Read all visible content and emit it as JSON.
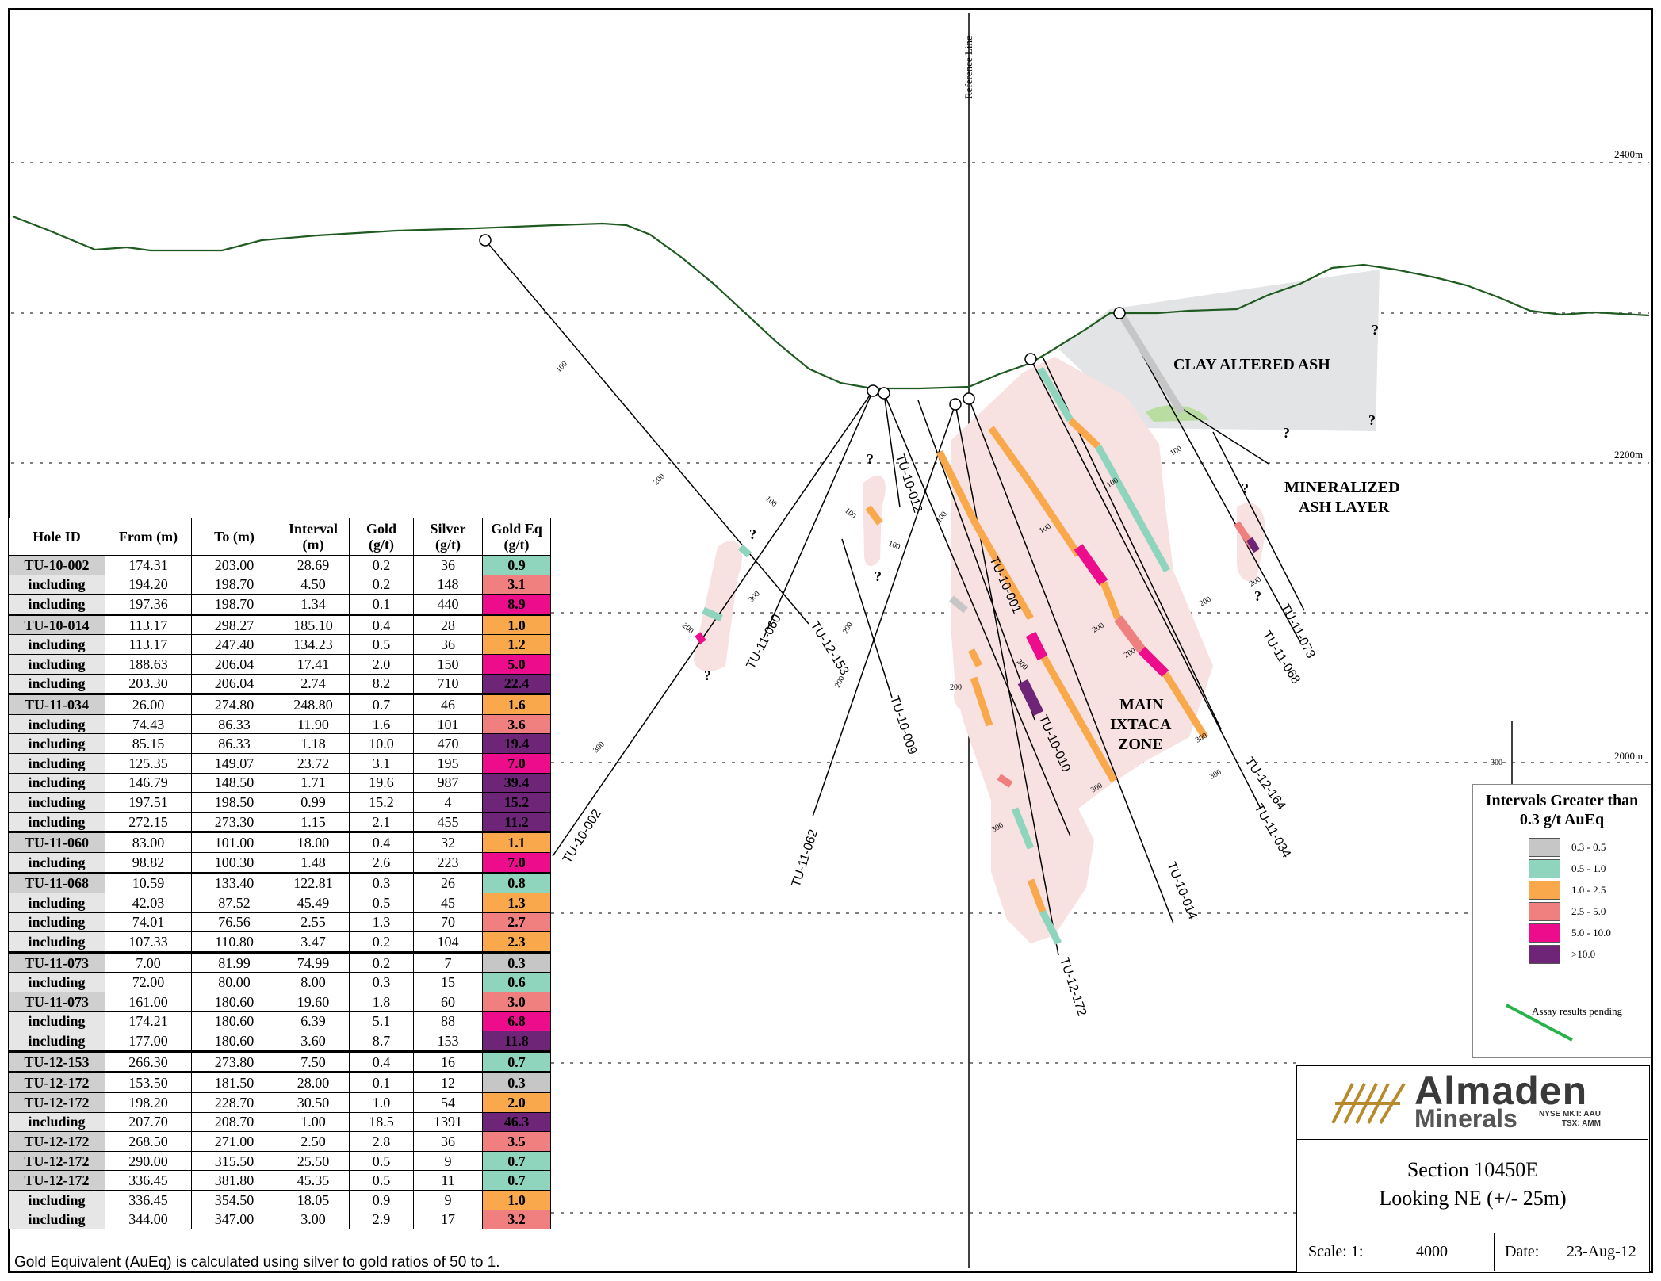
{
  "elevations": {
    "e2400": "2400m",
    "e2200": "2200m",
    "e2000": "2000m"
  },
  "reference_line": "Reference Line",
  "zones": {
    "clay": "CLAY ALTERED ASH",
    "ash_line1": "MINERALIZED",
    "ash_line2": "ASH LAYER",
    "main1": "MAIN",
    "main2": "IXTACA",
    "main3": "ZONE"
  },
  "holes": {
    "h1": "TU-10-002",
    "h2": "TU-11-060",
    "h3": "TU-12-153",
    "h4": "TU-10-009",
    "h5": "TU-10-012",
    "h6": "TU-11-062",
    "h7": "TU-10-001",
    "h8": "TU-10-010",
    "h9": "TU-10-014",
    "h10": "TU-11-034",
    "h11": "TU-12-164",
    "h12": "TU-11-068",
    "h13": "TU-11-073",
    "h14": "TU-12-172"
  },
  "depth_ticks": {
    "d100": "100",
    "d200": "200",
    "d300": "300",
    "q": "?"
  },
  "table": {
    "headers": {
      "hole_id": "Hole ID",
      "from": "From (m)",
      "to": "To (m)",
      "interval1": "Interval",
      "interval2": "(m)",
      "gold1": "Gold",
      "gold2": "(g/t)",
      "silver1": "Silver",
      "silver2": "(g/t)",
      "goldeq1": "Gold Eq",
      "goldeq2": "(g/t)"
    },
    "rows": [
      {
        "id": "TU-10-002",
        "from": "174.31",
        "to": "203.00",
        "interval": "28.69",
        "gold": "0.2",
        "silver": "36",
        "aueq": "0.9",
        "color": "#8fd5be",
        "group": true
      },
      {
        "id": "including",
        "from": "194.20",
        "to": "198.70",
        "interval": "4.50",
        "gold": "0.2",
        "silver": "148",
        "aueq": "3.1",
        "color": "#f08080",
        "group": false
      },
      {
        "id": "including",
        "from": "197.36",
        "to": "198.70",
        "interval": "1.34",
        "gold": "0.1",
        "silver": "440",
        "aueq": "8.9",
        "color": "#ec0c8c",
        "group": false
      },
      {
        "id": "TU-10-014",
        "from": "113.17",
        "to": "298.27",
        "interval": "185.10",
        "gold": "0.4",
        "silver": "28",
        "aueq": "1.0",
        "color": "#f9a84b",
        "group": true
      },
      {
        "id": "including",
        "from": "113.17",
        "to": "247.40",
        "interval": "134.23",
        "gold": "0.5",
        "silver": "36",
        "aueq": "1.2",
        "color": "#f9a84b",
        "group": false
      },
      {
        "id": "including",
        "from": "188.63",
        "to": "206.04",
        "interval": "17.41",
        "gold": "2.0",
        "silver": "150",
        "aueq": "5.0",
        "color": "#ec0c8c",
        "group": false
      },
      {
        "id": "including",
        "from": "203.30",
        "to": "206.04",
        "interval": "2.74",
        "gold": "8.2",
        "silver": "710",
        "aueq": "22.4",
        "color": "#6e2577",
        "group": false
      },
      {
        "id": "TU-11-034",
        "from": "26.00",
        "to": "274.80",
        "interval": "248.80",
        "gold": "0.7",
        "silver": "46",
        "aueq": "1.6",
        "color": "#f9a84b",
        "group": true
      },
      {
        "id": "including",
        "from": "74.43",
        "to": "86.33",
        "interval": "11.90",
        "gold": "1.6",
        "silver": "101",
        "aueq": "3.6",
        "color": "#f08080",
        "group": false
      },
      {
        "id": "including",
        "from": "85.15",
        "to": "86.33",
        "interval": "1.18",
        "gold": "10.0",
        "silver": "470",
        "aueq": "19.4",
        "color": "#6e2577",
        "group": false
      },
      {
        "id": "including",
        "from": "125.35",
        "to": "149.07",
        "interval": "23.72",
        "gold": "3.1",
        "silver": "195",
        "aueq": "7.0",
        "color": "#ec0c8c",
        "group": false
      },
      {
        "id": "including",
        "from": "146.79",
        "to": "148.50",
        "interval": "1.71",
        "gold": "19.6",
        "silver": "987",
        "aueq": "39.4",
        "color": "#6e2577",
        "group": false
      },
      {
        "id": "including",
        "from": "197.51",
        "to": "198.50",
        "interval": "0.99",
        "gold": "15.2",
        "silver": "4",
        "aueq": "15.2",
        "color": "#6e2577",
        "group": false
      },
      {
        "id": "including",
        "from": "272.15",
        "to": "273.30",
        "interval": "1.15",
        "gold": "2.1",
        "silver": "455",
        "aueq": "11.2",
        "color": "#6e2577",
        "group": false
      },
      {
        "id": "TU-11-060",
        "from": "83.00",
        "to": "101.00",
        "interval": "18.00",
        "gold": "0.4",
        "silver": "32",
        "aueq": "1.1",
        "color": "#f9a84b",
        "group": true
      },
      {
        "id": "including",
        "from": "98.82",
        "to": "100.30",
        "interval": "1.48",
        "gold": "2.6",
        "silver": "223",
        "aueq": "7.0",
        "color": "#ec0c8c",
        "group": false
      },
      {
        "id": "TU-11-068",
        "from": "10.59",
        "to": "133.40",
        "interval": "122.81",
        "gold": "0.3",
        "silver": "26",
        "aueq": "0.8",
        "color": "#8fd5be",
        "group": true
      },
      {
        "id": "including",
        "from": "42.03",
        "to": "87.52",
        "interval": "45.49",
        "gold": "0.5",
        "silver": "45",
        "aueq": "1.3",
        "color": "#f9a84b",
        "group": false
      },
      {
        "id": "including",
        "from": "74.01",
        "to": "76.56",
        "interval": "2.55",
        "gold": "1.3",
        "silver": "70",
        "aueq": "2.7",
        "color": "#f08080",
        "group": false
      },
      {
        "id": "including",
        "from": "107.33",
        "to": "110.80",
        "interval": "3.47",
        "gold": "0.2",
        "silver": "104",
        "aueq": "2.3",
        "color": "#f9a84b",
        "group": false
      },
      {
        "id": "TU-11-073",
        "from": "7.00",
        "to": "81.99",
        "interval": "74.99",
        "gold": "0.2",
        "silver": "7",
        "aueq": "0.3",
        "color": "#c6c6c6",
        "group": true
      },
      {
        "id": "including",
        "from": "72.00",
        "to": "80.00",
        "interval": "8.00",
        "gold": "0.3",
        "silver": "15",
        "aueq": "0.6",
        "color": "#8fd5be",
        "group": false
      },
      {
        "id": "TU-11-073",
        "from": "161.00",
        "to": "180.60",
        "interval": "19.60",
        "gold": "1.8",
        "silver": "60",
        "aueq": "3.0",
        "color": "#f08080",
        "group": false
      },
      {
        "id": "including",
        "from": "174.21",
        "to": "180.60",
        "interval": "6.39",
        "gold": "5.1",
        "silver": "88",
        "aueq": "6.8",
        "color": "#ec0c8c",
        "group": false
      },
      {
        "id": "including",
        "from": "177.00",
        "to": "180.60",
        "interval": "3.60",
        "gold": "8.7",
        "silver": "153",
        "aueq": "11.8",
        "color": "#6e2577",
        "group": false
      },
      {
        "id": "TU-12-153",
        "from": "266.30",
        "to": "273.80",
        "interval": "7.50",
        "gold": "0.4",
        "silver": "16",
        "aueq": "0.7",
        "color": "#8fd5be",
        "group": true
      },
      {
        "id": "TU-12-172",
        "from": "153.50",
        "to": "181.50",
        "interval": "28.00",
        "gold": "0.1",
        "silver": "12",
        "aueq": "0.3",
        "color": "#c6c6c6",
        "group": true
      },
      {
        "id": "TU-12-172",
        "from": "198.20",
        "to": "228.70",
        "interval": "30.50",
        "gold": "1.0",
        "silver": "54",
        "aueq": "2.0",
        "color": "#f9a84b",
        "group": false
      },
      {
        "id": "including",
        "from": "207.70",
        "to": "208.70",
        "interval": "1.00",
        "gold": "18.5",
        "silver": "1391",
        "aueq": "46.3",
        "color": "#6e2577",
        "group": false
      },
      {
        "id": "TU-12-172",
        "from": "268.50",
        "to": "271.00",
        "interval": "2.50",
        "gold": "2.8",
        "silver": "36",
        "aueq": "3.5",
        "color": "#f08080",
        "group": false
      },
      {
        "id": "TU-12-172",
        "from": "290.00",
        "to": "315.50",
        "interval": "25.50",
        "gold": "0.5",
        "silver": "9",
        "aueq": "0.7",
        "color": "#8fd5be",
        "group": false
      },
      {
        "id": "TU-12-172",
        "from": "336.45",
        "to": "381.80",
        "interval": "45.35",
        "gold": "0.5",
        "silver": "11",
        "aueq": "0.7",
        "color": "#8fd5be",
        "group": false
      },
      {
        "id": "including",
        "from": "336.45",
        "to": "354.50",
        "interval": "18.05",
        "gold": "0.9",
        "silver": "9",
        "aueq": "1.0",
        "color": "#f9a84b",
        "group": false
      },
      {
        "id": "including",
        "from": "344.00",
        "to": "347.00",
        "interval": "3.00",
        "gold": "2.9",
        "silver": "17",
        "aueq": "3.2",
        "color": "#f08080",
        "group": false
      }
    ]
  },
  "footnote": "Gold Equivalent (AuEq) is calculated using silver to gold ratios of 50 to 1.",
  "legend": {
    "title1": "Intervals Greater than",
    "title2": "0.3 g/t AuEq",
    "items": [
      {
        "label": "0.3 - 0.5",
        "color": "#c6c6c6"
      },
      {
        "label": "0.5 - 1.0",
        "color": "#8fd5be"
      },
      {
        "label": "1.0 - 2.5",
        "color": "#f9a84b"
      },
      {
        "label": "2.5 - 5.0",
        "color": "#f08080"
      },
      {
        "label": "5.0 - 10.0",
        "color": "#ec0c8c"
      },
      {
        "label": ">10.0",
        "color": "#6e2577"
      }
    ],
    "pending": "Assay results pending"
  },
  "titleblock": {
    "logo1": "Almaden",
    "logo2": "Minerals",
    "nyse": "NYSE MKT: AAU",
    "tsx": "TSX: AMM",
    "section": "Section 10450E",
    "looking": "Looking NE (+/- 25m)",
    "scale_label": "Scale: 1:",
    "scale_value": "4000",
    "date_label": "Date:",
    "date_value": "23-Aug-12"
  }
}
